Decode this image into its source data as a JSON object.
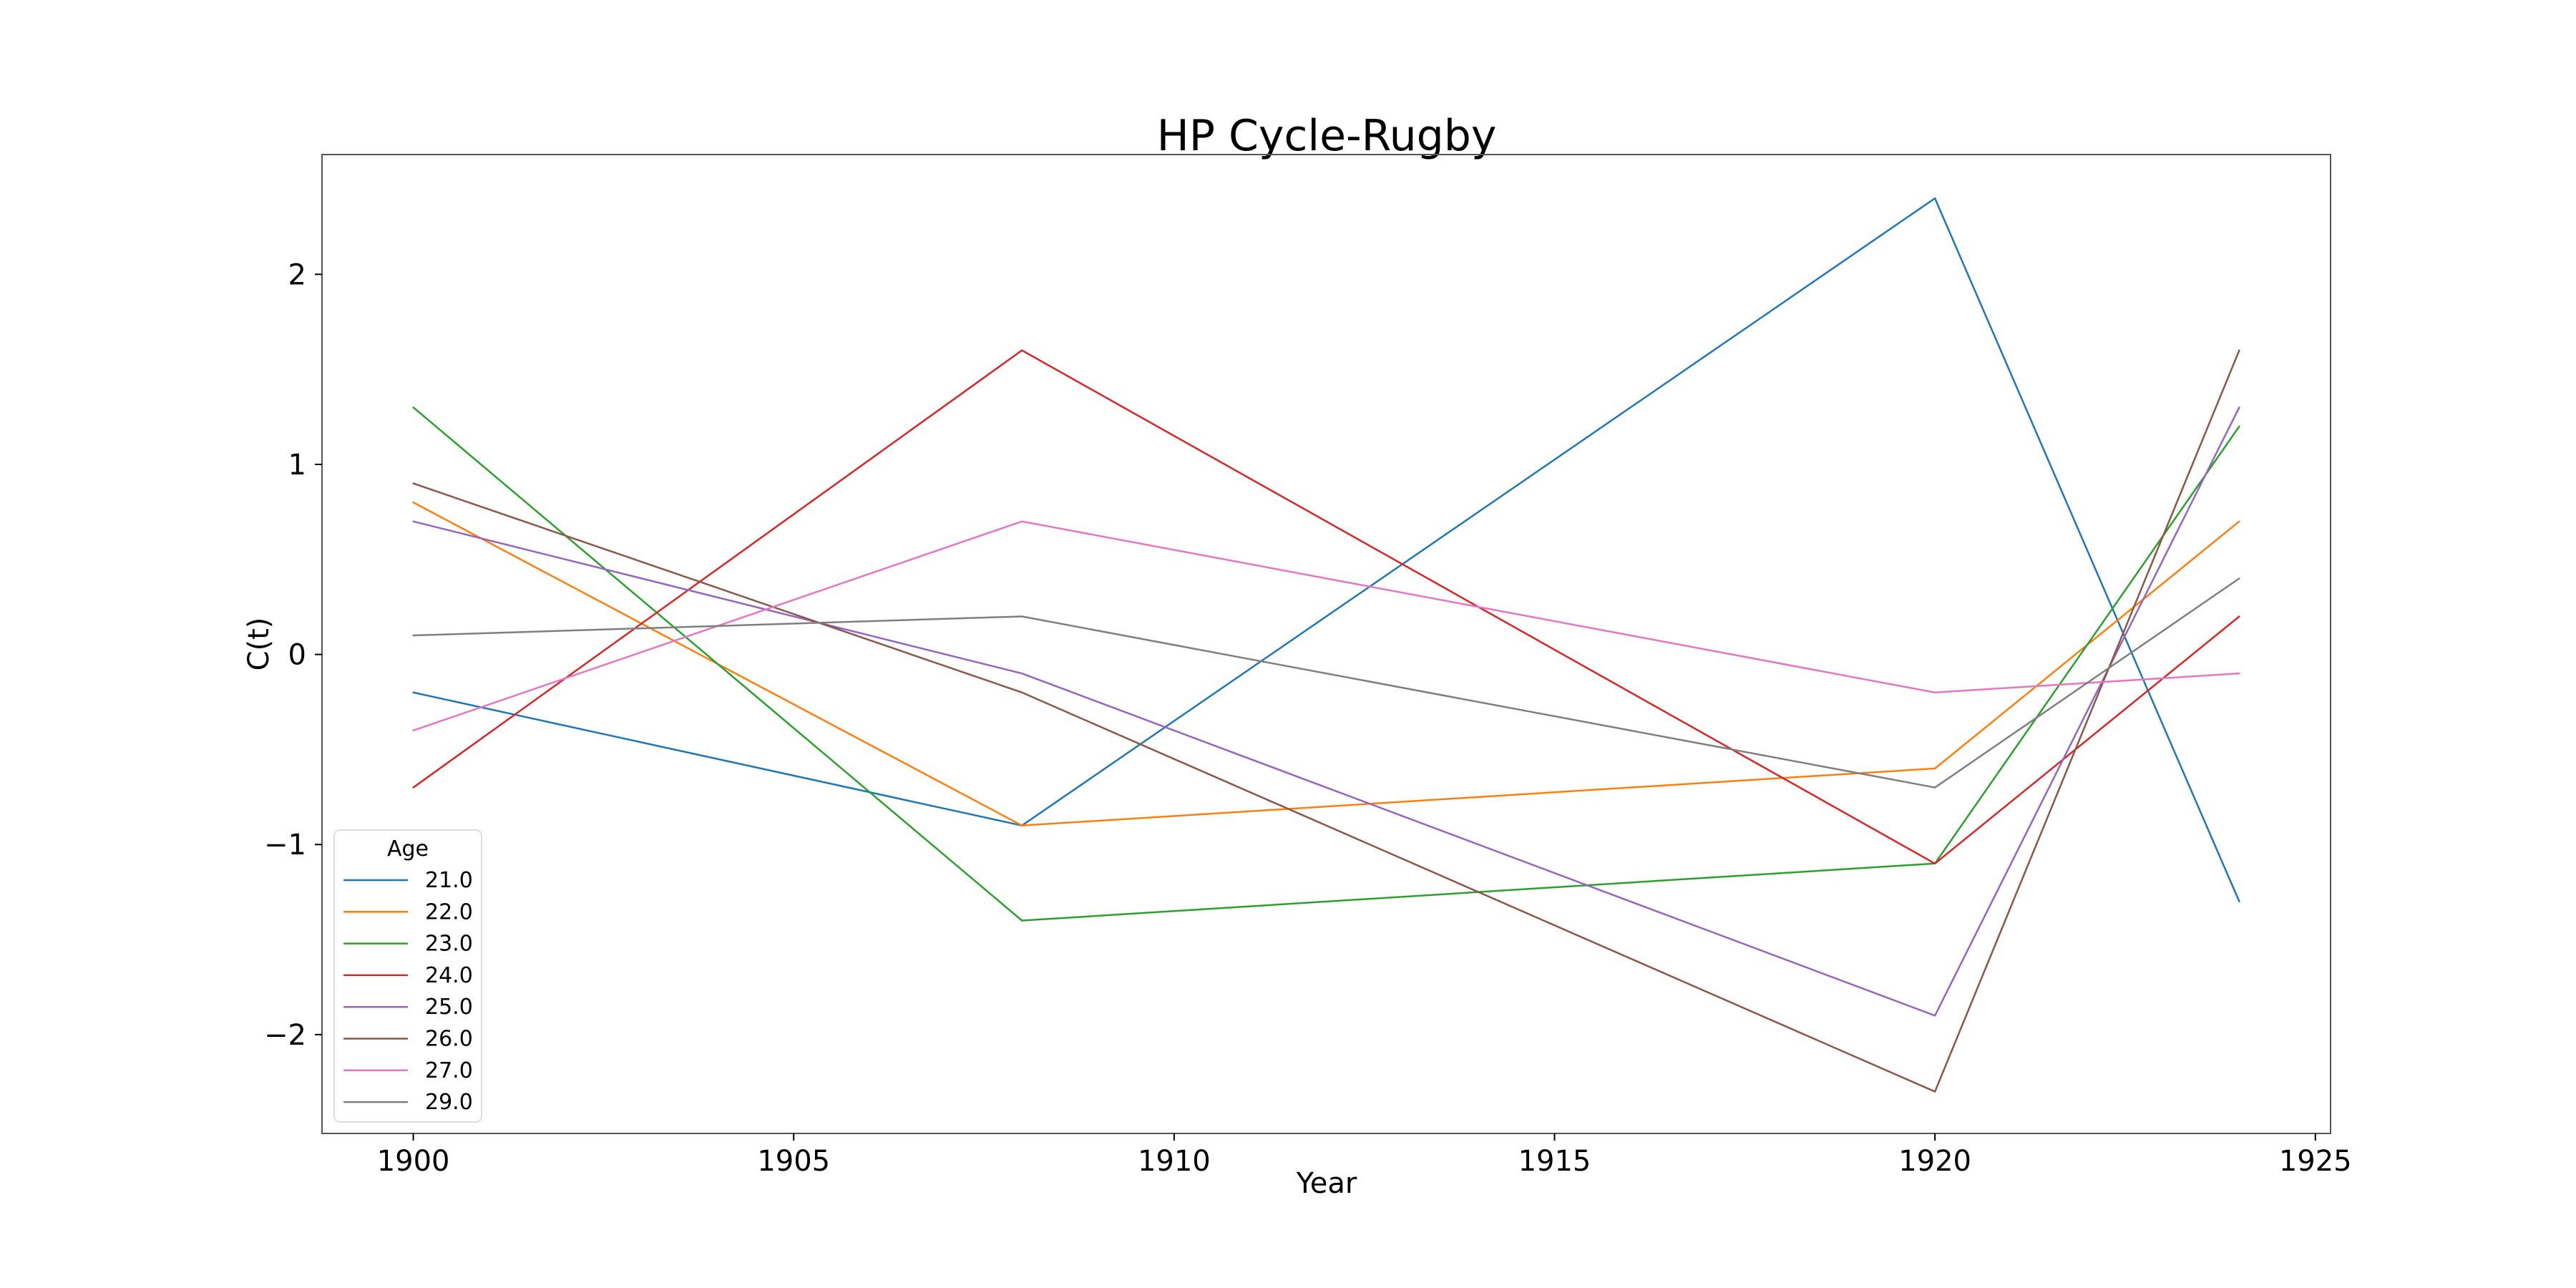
{
  "chart_data": {
    "type": "line",
    "title": "HP Cycle-Rugby",
    "xlabel": "Year",
    "ylabel": "C(t)",
    "x": [
      1900,
      1908,
      1920,
      1924
    ],
    "xlim": [
      1898.8,
      1925.2
    ],
    "ylim": [
      -2.52,
      2.63
    ],
    "xticks": [
      1900,
      1905,
      1910,
      1915,
      1920,
      1925
    ],
    "xtick_labels": [
      "1900",
      "1905",
      "1910",
      "1915",
      "1920",
      "1925"
    ],
    "yticks": [
      -2,
      -1,
      0,
      1,
      2
    ],
    "ytick_labels": [
      "−2",
      "−1",
      "0",
      "1",
      "2"
    ],
    "grid": false,
    "legend": {
      "title": "Age",
      "placement": "lower-left"
    },
    "series": [
      {
        "name": "21.0",
        "color": "#1f77b4",
        "values": [
          -0.2,
          -0.9,
          2.4,
          -1.3
        ]
      },
      {
        "name": "22.0",
        "color": "#ff7f0e",
        "values": [
          0.8,
          -0.9,
          -0.6,
          0.7
        ]
      },
      {
        "name": "23.0",
        "color": "#2ca02c",
        "values": [
          1.3,
          -1.4,
          -1.1,
          1.2
        ]
      },
      {
        "name": "24.0",
        "color": "#d62728",
        "values": [
          -0.7,
          1.6,
          -1.1,
          0.2
        ]
      },
      {
        "name": "25.0",
        "color": "#9467bd",
        "values": [
          0.7,
          -0.1,
          -1.9,
          1.3
        ]
      },
      {
        "name": "26.0",
        "color": "#8c564b",
        "values": [
          0.9,
          -0.2,
          -2.3,
          1.6
        ]
      },
      {
        "name": "27.0",
        "color": "#e377c2",
        "values": [
          -0.4,
          0.7,
          -0.2,
          -0.1
        ]
      },
      {
        "name": "29.0",
        "color": "#7f7f7f",
        "values": [
          0.1,
          0.2,
          -0.7,
          0.4
        ]
      }
    ]
  }
}
